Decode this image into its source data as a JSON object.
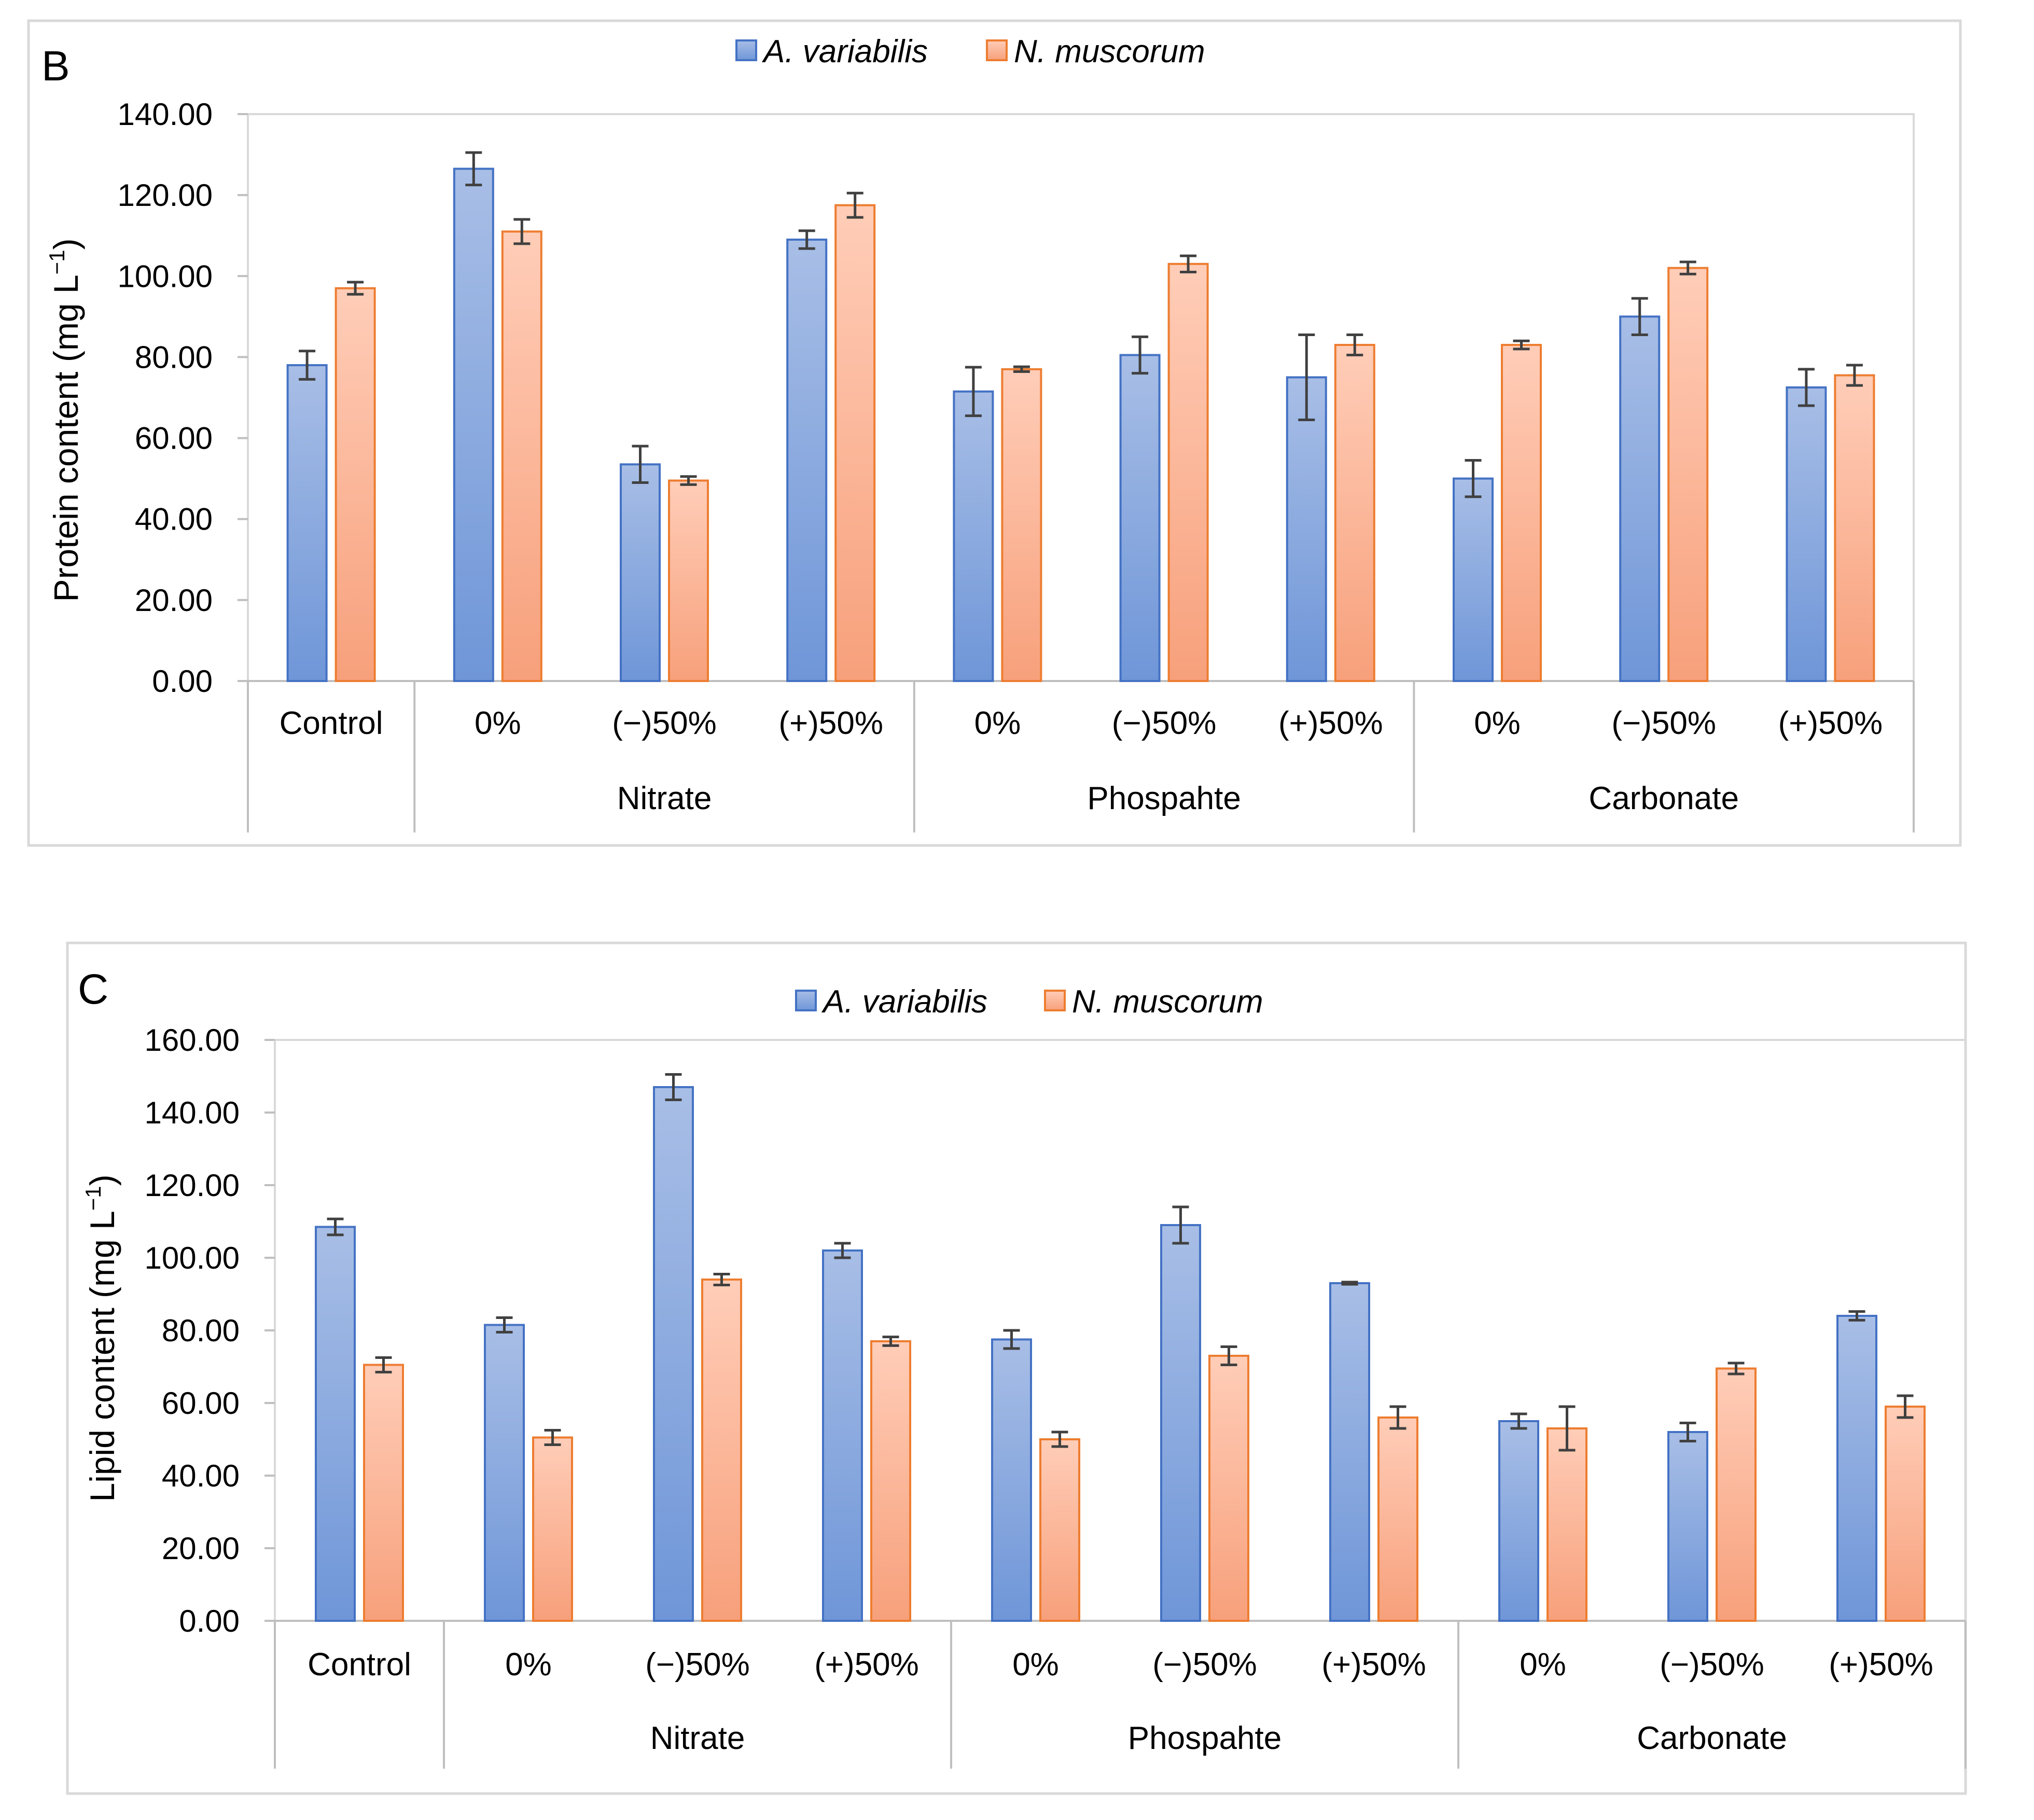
{
  "colors": {
    "series1_fill_top": "#a8bee6",
    "series1_fill_bottom": "#6f96d8",
    "series1_stroke": "#4472c4",
    "series2_fill_top": "#ffcdb8",
    "series2_fill_bottom": "#f7a07b",
    "series2_stroke": "#ed7d31"
  },
  "chart_data": [
    {
      "type": "bar",
      "panel_label": "B",
      "ylabel_main": "Protein content (mg L",
      "ylabel_sup": "−1",
      "ylabel_close": ")",
      "ylim": [
        0,
        140
      ],
      "yticks": [
        "0.00",
        "20.00",
        "40.00",
        "60.00",
        "80.00",
        "100.00",
        "120.00",
        "140.00"
      ],
      "legend": [
        "A. variabilis",
        "N. muscorum"
      ],
      "legend_position": "top-center",
      "groups": [
        {
          "label": "",
          "categories": [
            "Control"
          ]
        },
        {
          "label": "Nitrate",
          "categories": [
            "0%",
            "(−)50%",
            "(+)50%"
          ]
        },
        {
          "label": "Phospahte",
          "categories": [
            "0%",
            "(−)50%",
            "(+)50%"
          ]
        },
        {
          "label": "Carbonate",
          "categories": [
            "0%",
            "(−)50%",
            "(+)50%"
          ]
        }
      ],
      "series": [
        {
          "name": "A. variabilis",
          "values": [
            78.0,
            126.5,
            53.5,
            109.0,
            71.5,
            80.5,
            75.0,
            50.0,
            90.0,
            72.5
          ],
          "errors": [
            3.5,
            4.0,
            4.5,
            2.2,
            6.0,
            4.5,
            10.5,
            4.5,
            4.5,
            4.5
          ]
        },
        {
          "name": "N. muscorum",
          "values": [
            97.0,
            111.0,
            49.5,
            117.5,
            77.0,
            103.0,
            83.0,
            83.0,
            102.0,
            75.5
          ],
          "errors": [
            1.5,
            3.0,
            1.0,
            3.0,
            0.6,
            2.0,
            2.5,
            1.0,
            1.5,
            2.5
          ]
        }
      ]
    },
    {
      "type": "bar",
      "panel_label": "C",
      "ylabel_main": "Lipid content (mg L",
      "ylabel_sup": "−1",
      "ylabel_close": ")",
      "ylim": [
        0,
        160
      ],
      "yticks": [
        "0.00",
        "20.00",
        "40.00",
        "60.00",
        "80.00",
        "100.00",
        "120.00",
        "140.00",
        "160.00"
      ],
      "legend": [
        "A. variabilis",
        "N. muscorum"
      ],
      "legend_position": "top-center",
      "groups": [
        {
          "label": "",
          "categories": [
            "Control"
          ]
        },
        {
          "label": "Nitrate",
          "categories": [
            "0%",
            "(−)50%",
            "(+)50%"
          ]
        },
        {
          "label": "Phospahte",
          "categories": [
            "0%",
            "(−)50%",
            "(+)50%"
          ]
        },
        {
          "label": "Carbonate",
          "categories": [
            "0%",
            "(−)50%",
            "(+)50%"
          ]
        }
      ],
      "series": [
        {
          "name": "A. variabilis",
          "values": [
            108.5,
            81.5,
            147.0,
            102.0,
            77.5,
            109.0,
            93.0,
            55.0,
            52.0,
            84.0
          ],
          "errors": [
            2.2,
            2.0,
            3.5,
            2.0,
            2.5,
            5.0,
            0.3,
            2.0,
            2.5,
            1.2
          ]
        },
        {
          "name": "N. muscorum",
          "values": [
            70.5,
            50.5,
            94.0,
            77.0,
            50.0,
            73.0,
            56.0,
            53.0,
            69.5,
            59.0
          ],
          "errors": [
            2.0,
            2.0,
            1.5,
            1.2,
            2.0,
            2.5,
            3.0,
            6.0,
            1.5,
            3.0
          ]
        }
      ]
    }
  ]
}
